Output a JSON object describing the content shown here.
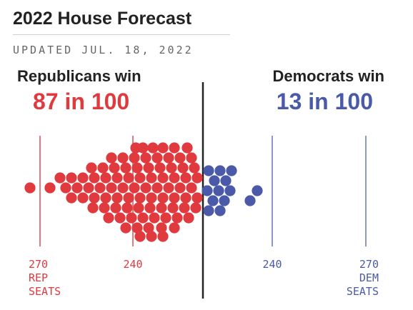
{
  "header": {
    "title": "2022 House Forecast",
    "updated": "UPDATED JUL. 18, 2022"
  },
  "outcomes": {
    "rep_label": "Republicans win",
    "rep_odds": "87 in 100",
    "dem_label": "Democrats win",
    "dem_odds": "13 in 100"
  },
  "colors": {
    "republican": "#e0393e",
    "democrat": "#4a5aa8",
    "rep_line": "#e8797c",
    "dem_line": "#8e97cc",
    "majority_line": "#222222"
  },
  "chart_data": {
    "type": "scatter",
    "subtype": "beeswarm",
    "title": "",
    "x_axis": {
      "label": "",
      "reversed": true,
      "range": [
        280,
        0
      ]
    },
    "reference_lines": [
      {
        "value": 270,
        "party": "rep",
        "label_lines": [
          "270",
          "REP",
          "SEATS"
        ]
      },
      {
        "value": 240,
        "party": "rep",
        "label_lines": [
          "240"
        ]
      },
      {
        "value": 240,
        "party": "dem",
        "label_lines": [
          "240"
        ]
      },
      {
        "value": 270,
        "party": "dem",
        "label_lines": [
          "270",
          "DEM",
          "SEATS"
        ]
      }
    ],
    "series": [
      {
        "party": "rep",
        "count": 87
      },
      {
        "party": "dem",
        "count": 13
      }
    ]
  }
}
